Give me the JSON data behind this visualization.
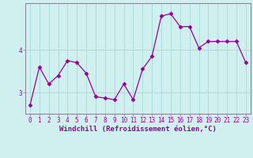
{
  "x": [
    0,
    1,
    2,
    3,
    4,
    5,
    6,
    7,
    8,
    9,
    10,
    11,
    12,
    13,
    14,
    15,
    16,
    17,
    18,
    19,
    20,
    21,
    22,
    23
  ],
  "y": [
    2.7,
    3.6,
    3.2,
    3.4,
    3.75,
    3.7,
    3.45,
    2.9,
    2.87,
    2.83,
    3.2,
    2.83,
    3.55,
    3.85,
    4.8,
    4.85,
    4.55,
    4.55,
    4.05,
    4.2,
    4.2,
    4.2,
    4.2,
    3.7
  ],
  "line_color": "#990099",
  "marker": "D",
  "marker_size": 2.5,
  "background_color": "#cff0ee",
  "grid_color": "#aadddd",
  "xlabel": "Windchill (Refroidissement éolien,°C)",
  "xlabel_fontsize": 6.5,
  "tick_fontsize": 5.5,
  "ylim": [
    2.5,
    5.1
  ],
  "yticks": [
    3,
    4
  ],
  "xlim": [
    -0.5,
    23.5
  ],
  "spine_color": "#888899"
}
